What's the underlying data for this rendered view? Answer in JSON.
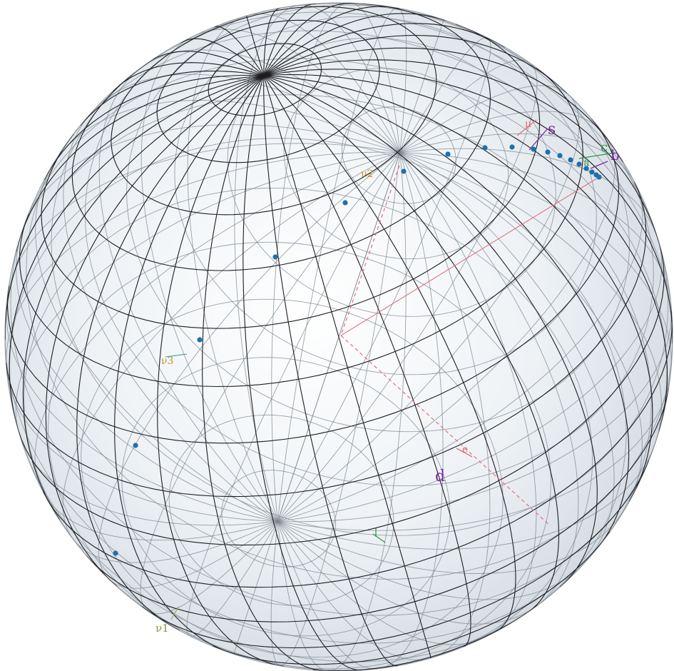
{
  "labels": {
    "s": "s",
    "c": "c",
    "b": "b",
    "d": "d",
    "e": "e",
    "v1": "ν1",
    "v2": "ν2",
    "v3": "ν3",
    "mu": "μ",
    "pi": "π"
  },
  "colors": {
    "sphere": "#e9eef3",
    "grid_dark": "#1e1e22",
    "grid_light": "#7b858d",
    "points": "#1e6fae",
    "red": "#e46f7d",
    "purple": "#7a2fa0",
    "green": "#2f9a49",
    "teal": "#2ea39c",
    "orange": "#c8922a"
  },
  "counts": {
    "blue_points": 18
  }
}
